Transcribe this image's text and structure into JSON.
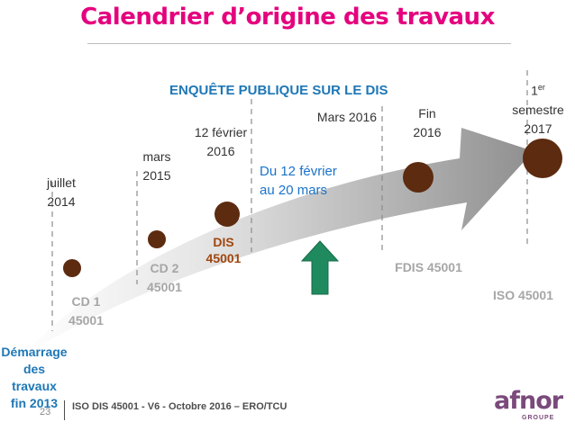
{
  "title": "Calendrier d’origine des travaux",
  "banner": "ENQUÊTE PUBLIQUE SUR LE DIS",
  "milestones": {
    "start": "Démarrage des travaux fin 2013",
    "start_lines": [
      "Démarrage",
      "des travaux",
      "fin 2013"
    ],
    "cd1_date": [
      "juillet",
      "2014"
    ],
    "cd1_label": [
      "CD 1",
      "45001"
    ],
    "cd2_date": [
      "mars",
      "2015"
    ],
    "cd2_label": [
      "CD 2",
      "45001"
    ],
    "dis_date": [
      "12 février",
      "2016"
    ],
    "dis_label": [
      "DIS",
      "45001"
    ],
    "inquiry_end": "Mars 2016",
    "inquiry_period": [
      "Du 12 février",
      "au 20 mars"
    ],
    "fdis_date": [
      "Fin",
      "2016"
    ],
    "fdis_label": "FDIS 45001",
    "iso_date_sup": "er",
    "iso_date": [
      "1",
      "semestre",
      "2017"
    ],
    "iso_label": "ISO 45001"
  },
  "footer": {
    "page_number": "23",
    "text": "ISO DIS 45001 - V6 - Octobre 2016 – ERO/TCU"
  },
  "logo": {
    "word": "afnor",
    "sub": "GROUPE"
  },
  "colors": {
    "title": "#e5007e",
    "milestone_dot": "#5c2b10",
    "arrow_up": "#1f8a5e",
    "period_text": "#1a73c9",
    "start_text": "#1e77b6",
    "dis_text": "#a0460e"
  }
}
